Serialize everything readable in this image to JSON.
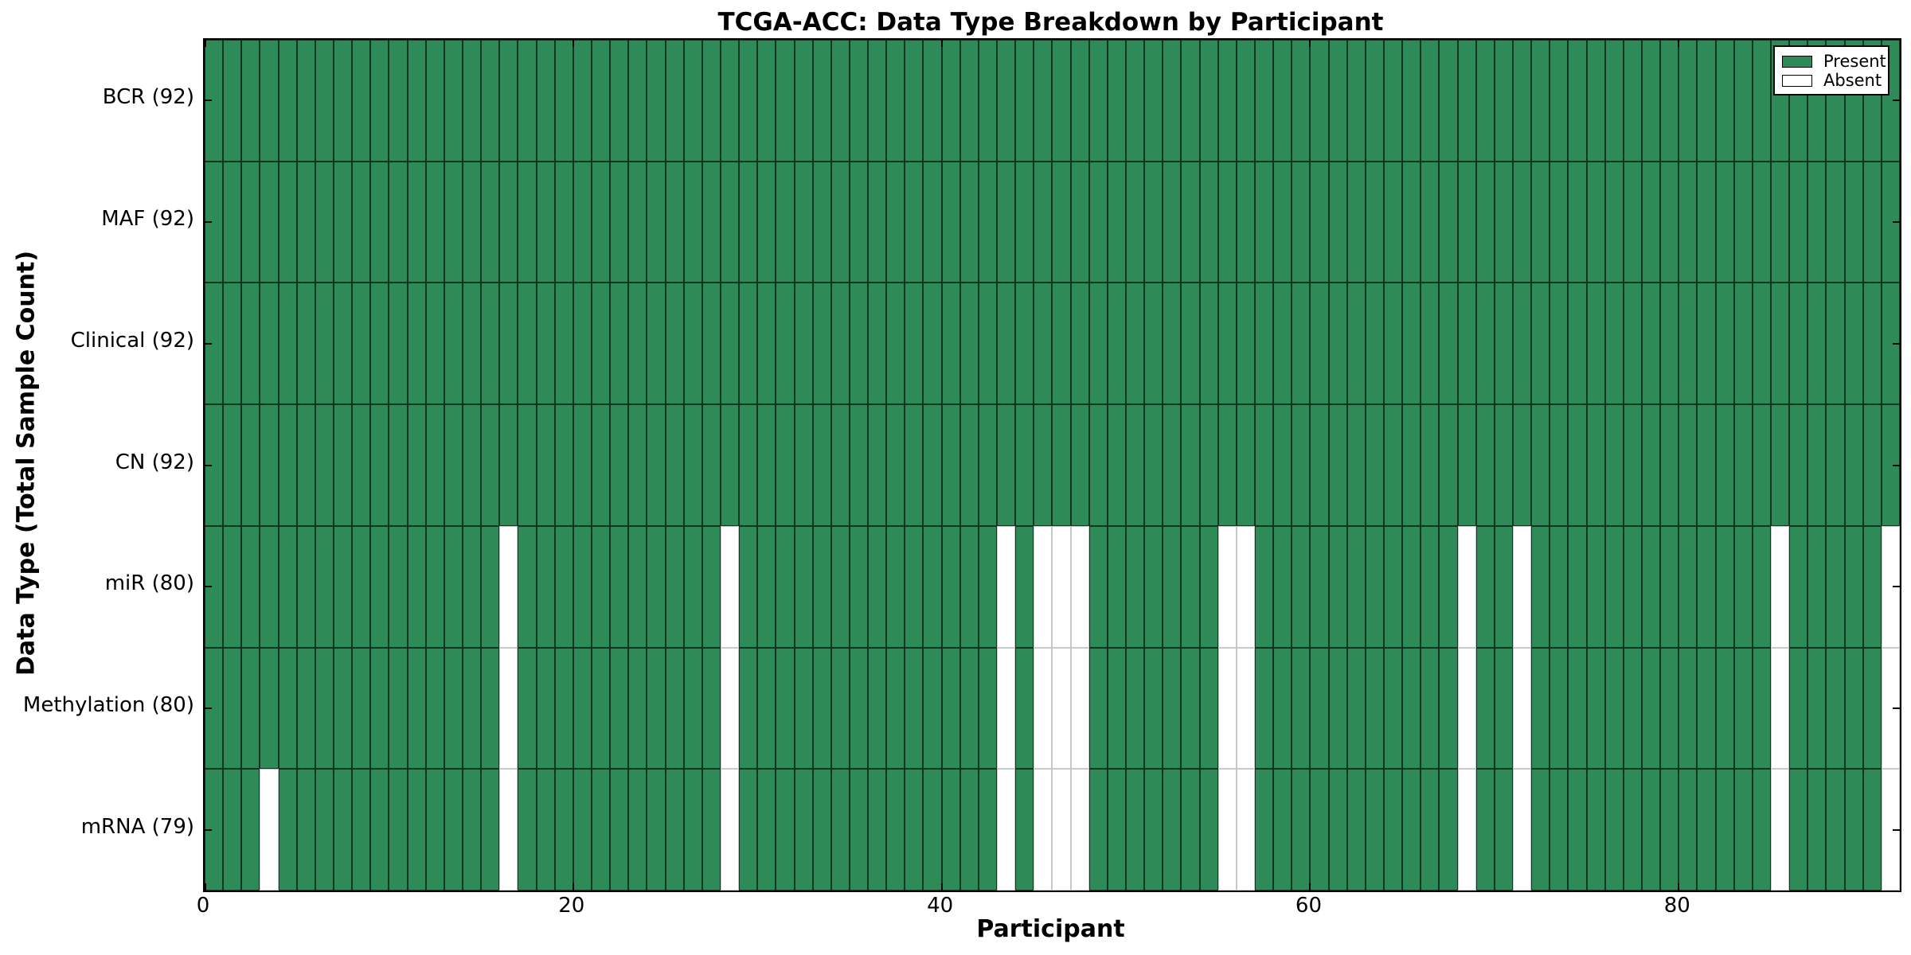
{
  "chart_data": {
    "type": "heatmap",
    "title": "TCGA-ACC: Data Type Breakdown by Participant",
    "xlabel": "Participant",
    "ylabel": "Data Type (Total Sample Count)",
    "n_participants": 92,
    "x_range": [
      0,
      92
    ],
    "x_ticks": [
      0,
      20,
      40,
      60,
      80
    ],
    "grid": false,
    "legend_position": "upper right",
    "legend": [
      {
        "label": "Present",
        "color": "#2E8B57"
      },
      {
        "label": "Absent",
        "color": "#FFFFFF"
      }
    ],
    "rows": [
      {
        "label": "BCR (92)",
        "name": "BCR",
        "present_count": 92,
        "absent_participants": []
      },
      {
        "label": "MAF (92)",
        "name": "MAF",
        "present_count": 92,
        "absent_participants": []
      },
      {
        "label": "Clinical (92)",
        "name": "Clinical",
        "present_count": 92,
        "absent_participants": []
      },
      {
        "label": "CN (92)",
        "name": "CN",
        "present_count": 92,
        "absent_participants": []
      },
      {
        "label": "miR (80)",
        "name": "miR",
        "present_count": 80,
        "absent_participants": [
          16,
          28,
          43,
          45,
          46,
          47,
          55,
          56,
          68,
          71,
          85,
          91
        ]
      },
      {
        "label": "Methylation (80)",
        "name": "Methylation",
        "present_count": 80,
        "absent_participants": [
          16,
          28,
          43,
          45,
          46,
          47,
          55,
          56,
          68,
          71,
          85,
          91
        ]
      },
      {
        "label": "mRNA (79)",
        "name": "mRNA",
        "present_count": 79,
        "absent_participants": [
          3,
          16,
          28,
          43,
          45,
          46,
          47,
          55,
          56,
          68,
          71,
          85,
          91
        ]
      }
    ]
  }
}
